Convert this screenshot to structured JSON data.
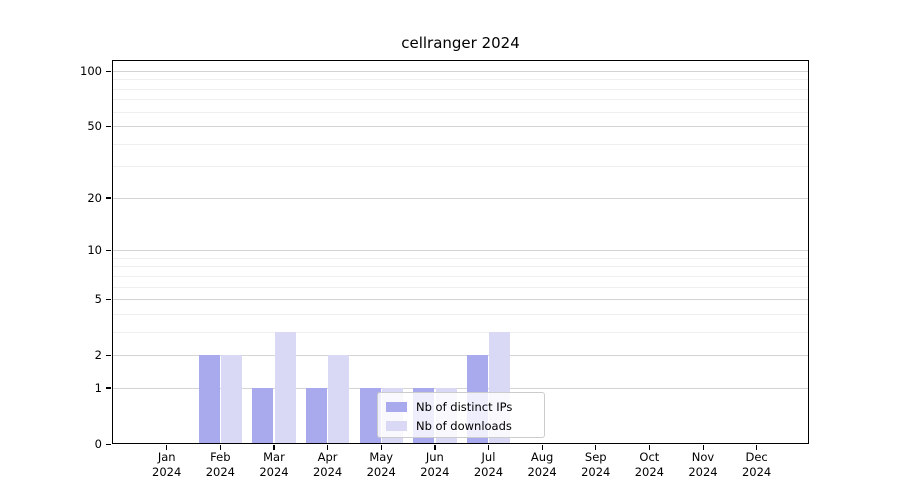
{
  "chart_data": {
    "type": "bar",
    "title": "cellranger 2024",
    "categories": [
      "Jan",
      "Feb",
      "Mar",
      "Apr",
      "May",
      "Jun",
      "Jul",
      "Aug",
      "Sep",
      "Oct",
      "Nov",
      "Dec"
    ],
    "category_sublabel": "2024",
    "series": [
      {
        "name": "Nb of distinct IPs",
        "color": "#a9a9ee",
        "values": [
          0,
          2,
          1,
          1,
          1,
          1,
          2,
          0,
          0,
          0,
          0,
          0
        ]
      },
      {
        "name": "Nb of downloads",
        "color": "#d9d9f6",
        "values": [
          0,
          2,
          3,
          2,
          1,
          1,
          3,
          0,
          0,
          0,
          0,
          0
        ]
      }
    ],
    "yscale": "log1p",
    "ylim": [
      0,
      115
    ],
    "y_major_ticks": [
      0,
      1,
      2,
      5,
      10,
      20,
      50,
      100
    ],
    "y_minor_ticks": [
      3,
      4,
      6,
      7,
      8,
      9,
      30,
      40,
      60,
      70,
      80,
      90
    ],
    "xlabel": "",
    "ylabel": "",
    "grid": "on",
    "legend_position": "lower-center"
  }
}
